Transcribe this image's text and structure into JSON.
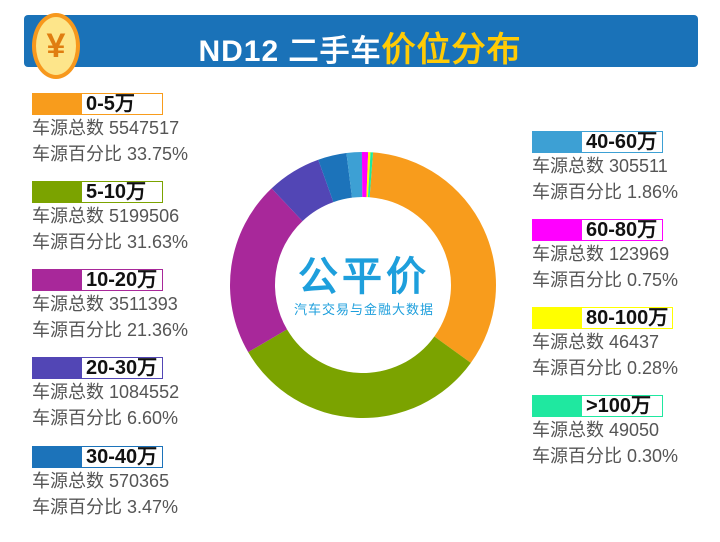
{
  "header": {
    "title_white": "ND12 二手车",
    "title_yellow": "价位分布",
    "coin_icon": "yen-coin-icon",
    "coin_symbol": "¥"
  },
  "logo": {
    "name": "公平价",
    "tagline": "汽车交易与金融大数据"
  },
  "labels": {
    "count": "车源总数",
    "percent": "车源百分比"
  },
  "chart_data": {
    "type": "pie",
    "donut": true,
    "legend": "left-and-right",
    "categories": [
      "0-5万",
      "5-10万",
      "10-20万",
      "20-30万",
      "30-40万",
      "40-60万",
      "60-80万",
      "80-100万",
      ">100万"
    ],
    "counts": [
      5547517,
      5199506,
      3511393,
      1084552,
      570365,
      305511,
      123969,
      46437,
      49050
    ],
    "values": [
      33.75,
      31.63,
      21.36,
      6.6,
      3.47,
      1.86,
      0.75,
      0.28,
      0.3
    ],
    "percent_labels": [
      "33.75%",
      "31.63%",
      "21.36%",
      "6.60%",
      "3.47%",
      "1.86%",
      "0.75%",
      "0.28%",
      "0.30%"
    ],
    "colors": [
      "#f89c1c",
      "#7ba300",
      "#a8289a",
      "#5246b5",
      "#1c73ba",
      "#3da0d4",
      "#ff00ff",
      "#ffff00",
      "#1fe8a0"
    ]
  }
}
